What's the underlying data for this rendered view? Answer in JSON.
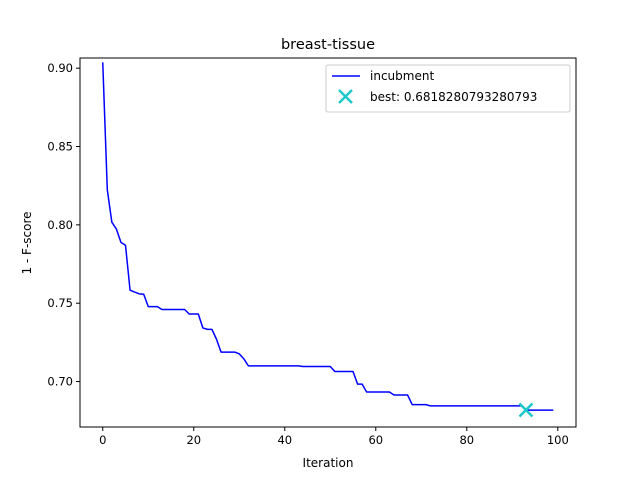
{
  "chart_data": {
    "type": "line",
    "title": "breast-tissue",
    "xlabel": "Iteration",
    "ylabel": "1 - F-score",
    "xlim": [
      -5,
      104
    ],
    "ylim": [
      0.671,
      0.9065
    ],
    "x_ticks": [
      0,
      20,
      40,
      60,
      80,
      100
    ],
    "y_ticks": [
      0.7,
      0.75,
      0.8,
      0.85,
      0.9
    ],
    "x_tick_labels": [
      "0",
      "20",
      "40",
      "60",
      "80",
      "100"
    ],
    "y_tick_labels": [
      "0.70",
      "0.75",
      "0.80",
      "0.85",
      "0.90"
    ],
    "grid": false,
    "legend_position": "top-right",
    "series": [
      {
        "name": "incubment",
        "kind": "line",
        "color": "#0000ff",
        "x": [
          0,
          1,
          2,
          3,
          4,
          5,
          6,
          7,
          8,
          9,
          10,
          11,
          12,
          13,
          14,
          15,
          16,
          17,
          18,
          19,
          20,
          21,
          22,
          23,
          24,
          25,
          26,
          27,
          28,
          29,
          30,
          31,
          32,
          33,
          34,
          35,
          36,
          37,
          38,
          39,
          40,
          41,
          42,
          43,
          44,
          45,
          46,
          47,
          48,
          49,
          50,
          51,
          52,
          53,
          54,
          55,
          56,
          57,
          58,
          59,
          60,
          61,
          62,
          63,
          64,
          65,
          66,
          67,
          68,
          69,
          70,
          71,
          72,
          73,
          74,
          75,
          76,
          77,
          78,
          79,
          80,
          81,
          82,
          83,
          84,
          85,
          86,
          87,
          88,
          89,
          90,
          91,
          92,
          93,
          94,
          95,
          96,
          97,
          98,
          99
        ],
        "y": [
          0.9037,
          0.8224,
          0.8017,
          0.7973,
          0.7888,
          0.787,
          0.7583,
          0.7571,
          0.756,
          0.7557,
          0.7478,
          0.7478,
          0.7478,
          0.746,
          0.746,
          0.746,
          0.746,
          0.746,
          0.746,
          0.7431,
          0.7431,
          0.7431,
          0.7342,
          0.7333,
          0.7333,
          0.727,
          0.7188,
          0.7188,
          0.7188,
          0.7188,
          0.7177,
          0.7145,
          0.71,
          0.71,
          0.71,
          0.71,
          0.71,
          0.71,
          0.71,
          0.71,
          0.71,
          0.71,
          0.71,
          0.71,
          0.7096,
          0.7096,
          0.7096,
          0.7096,
          0.7096,
          0.7096,
          0.7096,
          0.7064,
          0.7064,
          0.7064,
          0.7064,
          0.7064,
          0.6984,
          0.6984,
          0.6933,
          0.6933,
          0.6933,
          0.6933,
          0.6933,
          0.6933,
          0.6914,
          0.6914,
          0.6914,
          0.6914,
          0.6853,
          0.6853,
          0.6853,
          0.6853,
          0.6845,
          0.6845,
          0.6845,
          0.6845,
          0.6845,
          0.6845,
          0.6845,
          0.6845,
          0.6845,
          0.6845,
          0.6845,
          0.6845,
          0.6845,
          0.6845,
          0.6845,
          0.6845,
          0.6845,
          0.6845,
          0.6845,
          0.6845,
          0.6845,
          0.6818,
          0.6818,
          0.6818,
          0.6818,
          0.6818,
          0.6818,
          0.6818
        ]
      },
      {
        "name": "best: 0.6818280793280793",
        "kind": "marker",
        "marker": "x",
        "color": "#1ec8c8",
        "x": [
          93
        ],
        "y": [
          0.6818280793280793
        ]
      }
    ]
  }
}
